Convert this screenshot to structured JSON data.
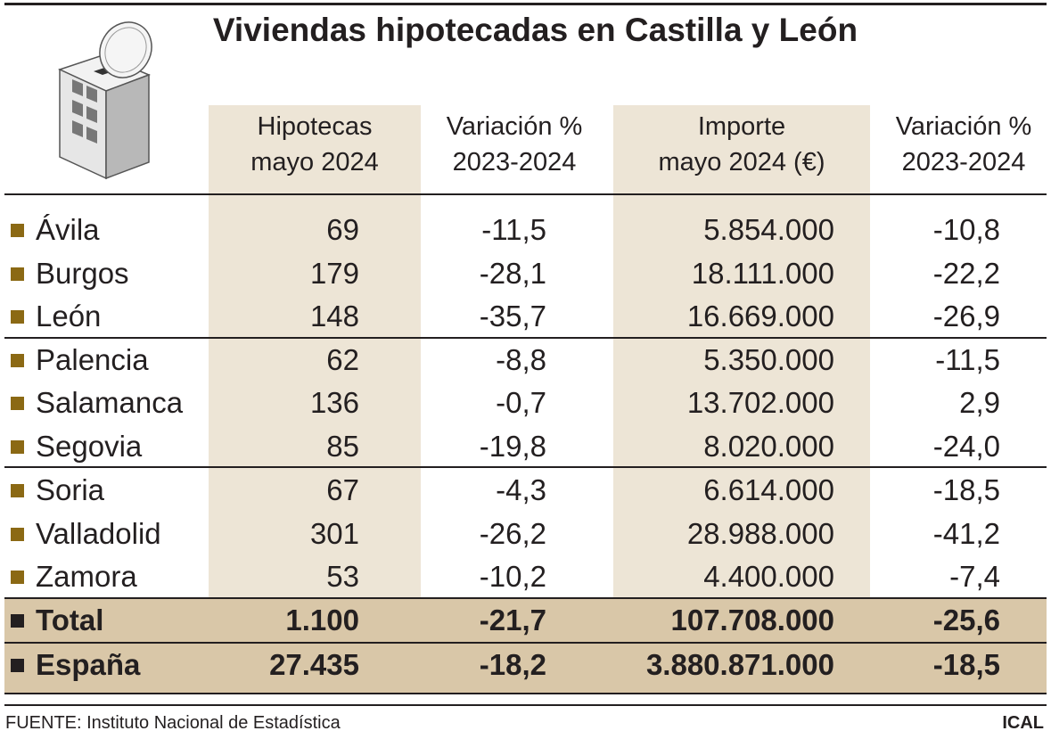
{
  "title": "Viviendas hipotecadas en Castilla y León",
  "headers": {
    "col1": [
      "Hipotecas",
      "mayo 2024"
    ],
    "col2": [
      "Variación %",
      "2023-2024"
    ],
    "col3": [
      "Importe",
      "mayo 2024 (€)"
    ],
    "col4": [
      "Variación %",
      "2023-2024"
    ]
  },
  "rows": [
    {
      "name": "Ávila",
      "hipotecas": "69",
      "var1": "-11,5",
      "importe": "5.854.000",
      "var2": "-10,8"
    },
    {
      "name": "Burgos",
      "hipotecas": "179",
      "var1": "-28,1",
      "importe": "18.111.000",
      "var2": "-22,2"
    },
    {
      "name": "León",
      "hipotecas": "148",
      "var1": "-35,7",
      "importe": "16.669.000",
      "var2": "-26,9"
    },
    {
      "name": "Palencia",
      "hipotecas": "62",
      "var1": "-8,8",
      "importe": "5.350.000",
      "var2": "-11,5"
    },
    {
      "name": "Salamanca",
      "hipotecas": "136",
      "var1": "-0,7",
      "importe": "13.702.000",
      "var2": "2,9"
    },
    {
      "name": "Segovia",
      "hipotecas": "85",
      "var1": "-19,8",
      "importe": "8.020.000",
      "var2": "-24,0"
    },
    {
      "name": "Soria",
      "hipotecas": "67",
      "var1": "-4,3",
      "importe": "6.614.000",
      "var2": "-18,5"
    },
    {
      "name": "Valladolid",
      "hipotecas": "301",
      "var1": "-26,2",
      "importe": "28.988.000",
      "var2": "-41,2"
    },
    {
      "name": "Zamora",
      "hipotecas": "53",
      "var1": "-10,2",
      "importe": "4.400.000",
      "var2": "-7,4"
    }
  ],
  "total": {
    "name": "Total",
    "hipotecas": "1.100",
    "var1": "-21,7",
    "importe": "107.708.000",
    "var2": "-25,6"
  },
  "espana": {
    "name": "España",
    "hipotecas": "27.435",
    "var1": "-18,2",
    "importe": "3.880.871.000",
    "var2": "-18,5"
  },
  "footer": {
    "source": "FUENTE: Instituto Nacional de Estadística",
    "credit": "ICAL"
  },
  "colors": {
    "shade": "#ede5d6",
    "total_band": "#d9c7a8",
    "bullet": "#8b6914",
    "text": "#231f20"
  },
  "icon": "building-with-coin-icon",
  "chart_data": {
    "type": "table",
    "title": "Viviendas hipotecadas en Castilla y León",
    "columns": [
      "",
      "Hipotecas mayo 2024",
      "Variación % 2023-2024",
      "Importe mayo 2024 (€)",
      "Variación % 2023-2024"
    ],
    "rows": [
      [
        "Ávila",
        69,
        -11.5,
        5854000,
        -10.8
      ],
      [
        "Burgos",
        179,
        -28.1,
        18111000,
        -22.2
      ],
      [
        "León",
        148,
        -35.7,
        16669000,
        -26.9
      ],
      [
        "Palencia",
        62,
        -8.8,
        5350000,
        -11.5
      ],
      [
        "Salamanca",
        136,
        -0.7,
        13702000,
        2.9
      ],
      [
        "Segovia",
        85,
        -19.8,
        8020000,
        -24.0
      ],
      [
        "Soria",
        67,
        -4.3,
        6614000,
        -18.5
      ],
      [
        "Valladolid",
        301,
        -26.2,
        28988000,
        -41.2
      ],
      [
        "Zamora",
        53,
        -10.2,
        4400000,
        -7.4
      ],
      [
        "Total",
        1100,
        -21.7,
        107708000,
        -25.6
      ],
      [
        "España",
        27435,
        -18.2,
        3880871000,
        -18.5
      ]
    ]
  }
}
